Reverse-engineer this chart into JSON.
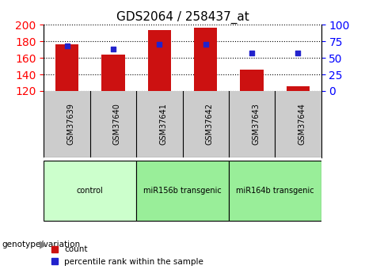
{
  "title": "GDS2064 / 258437_at",
  "samples": [
    "GSM37639",
    "GSM37640",
    "GSM37641",
    "GSM37642",
    "GSM37643",
    "GSM37644"
  ],
  "bar_values": [
    176,
    164,
    193,
    196,
    146,
    126
  ],
  "bar_bottom": 120,
  "dot_percentile": [
    68,
    63,
    70,
    70,
    57,
    57
  ],
  "ylim_left": [
    120,
    200
  ],
  "ylim_right": [
    0,
    100
  ],
  "yticks_left": [
    120,
    140,
    160,
    180,
    200
  ],
  "yticks_right": [
    0,
    25,
    50,
    75,
    100
  ],
  "bar_color": "#cc1111",
  "dot_color": "#2222cc",
  "groups": [
    {
      "label": "control",
      "indices": [
        0,
        1
      ],
      "color": "#ccffcc"
    },
    {
      "label": "miR156b transgenic",
      "indices": [
        2,
        3
      ],
      "color": "#99ee99"
    },
    {
      "label": "miR164b transgenic",
      "indices": [
        4,
        5
      ],
      "color": "#99ee99"
    }
  ],
  "xlabel_group": "genotype/variation",
  "legend_count": "count",
  "legend_percentile": "percentile rank within the sample",
  "bg_color": "#ffffff",
  "label_area_color": "#cccccc"
}
